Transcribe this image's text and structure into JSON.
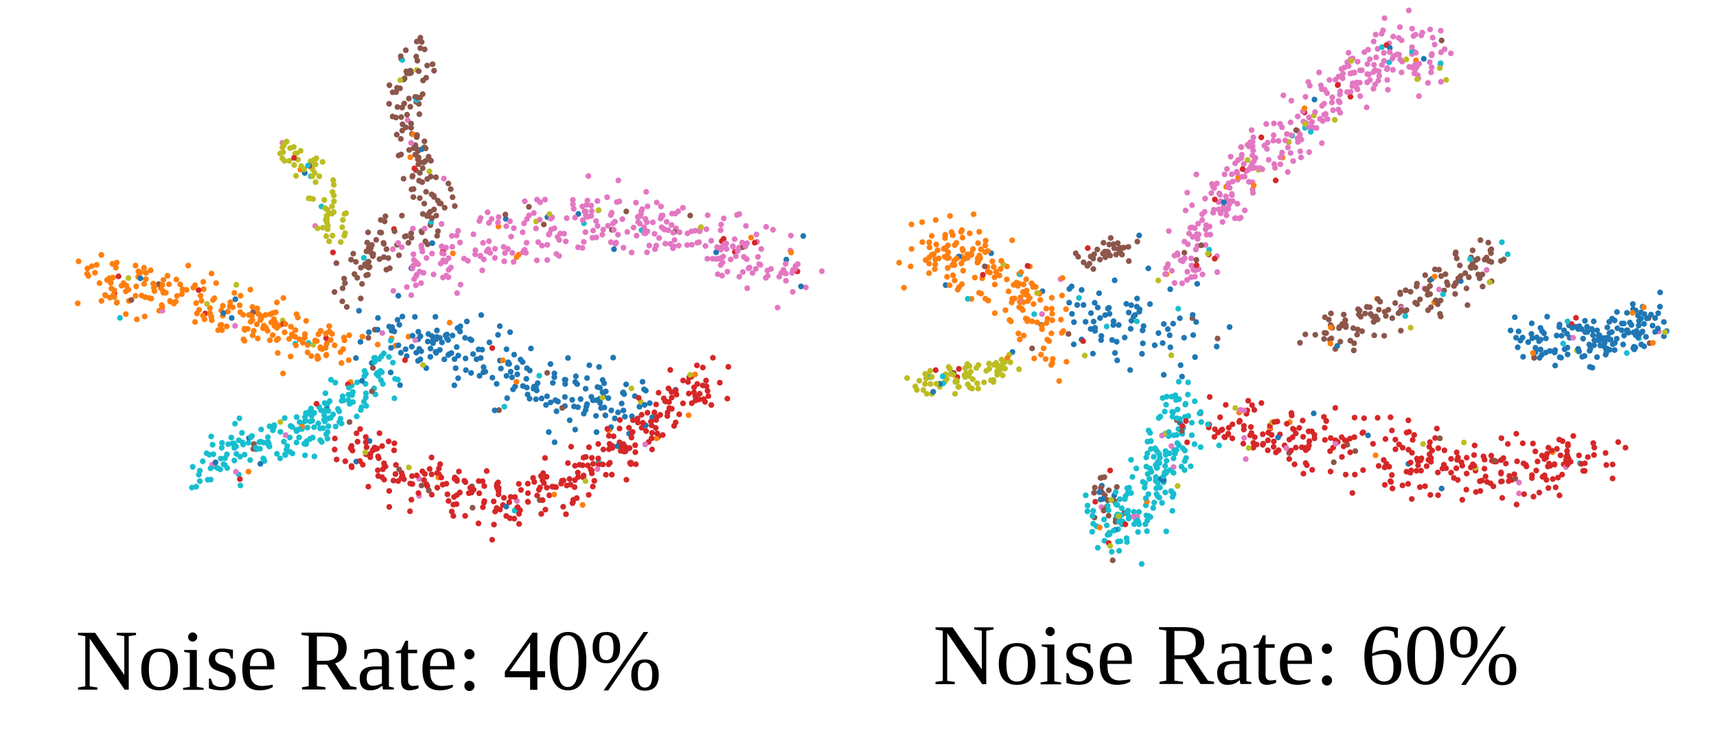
{
  "chart_data": [
    {
      "type": "scatter",
      "title": "Noise Rate: 40%",
      "xlim": [
        -2.3,
        2.3
      ],
      "ylim": [
        -1.25,
        1.55
      ],
      "grid": false,
      "axes_visible": false,
      "clusters": [
        {
          "class": 0,
          "color": "#1f77b4",
          "path": [
            [
              -0.35,
              -0.05
            ],
            [
              0.2,
              -0.15
            ],
            [
              0.75,
              -0.35
            ],
            [
              1.25,
              -0.45
            ]
          ],
          "spread": 0.09,
          "count": 230
        },
        {
          "class": 1,
          "color": "#ff7f0e",
          "path": [
            [
              -2.2,
              0.25
            ],
            [
              -1.7,
              0.2
            ],
            [
              -1.25,
              0.08
            ],
            [
              -0.85,
              -0.05
            ],
            [
              -0.55,
              -0.12
            ]
          ],
          "spread": 0.07,
          "count": 230
        },
        {
          "class": 2,
          "color": "#d62728",
          "path": [
            [
              -0.55,
              -0.6
            ],
            [
              -0.15,
              -0.8
            ],
            [
              0.35,
              -0.92
            ],
            [
              0.8,
              -0.85
            ],
            [
              1.25,
              -0.55
            ],
            [
              1.7,
              -0.25
            ]
          ],
          "spread": 0.07,
          "count": 330
        },
        {
          "class": 3,
          "color": "#8c564b",
          "path": [
            [
              -0.05,
              1.5
            ],
            [
              -0.2,
              1.2
            ],
            [
              -0.1,
              0.85
            ],
            [
              0.05,
              0.6
            ],
            [
              -0.35,
              0.45
            ],
            [
              -0.55,
              0.2
            ]
          ],
          "spread": 0.06,
          "count": 190
        },
        {
          "class": 4,
          "color": "#e377c2",
          "path": [
            [
              -0.25,
              0.3
            ],
            [
              0.3,
              0.45
            ],
            [
              0.9,
              0.58
            ],
            [
              1.5,
              0.5
            ],
            [
              2.0,
              0.35
            ],
            [
              2.25,
              0.25
            ]
          ],
          "spread": 0.08,
          "count": 340
        },
        {
          "class": 5,
          "color": "#17becf",
          "path": [
            [
              -1.45,
              -0.75
            ],
            [
              -1.0,
              -0.6
            ],
            [
              -0.6,
              -0.45
            ],
            [
              -0.3,
              -0.2
            ]
          ],
          "spread": 0.07,
          "count": 210
        },
        {
          "class": 6,
          "color": "#bcbd22",
          "path": [
            [
              -0.95,
              0.95
            ],
            [
              -0.8,
              0.85
            ],
            [
              -0.7,
              0.7
            ],
            [
              -0.6,
              0.45
            ]
          ],
          "spread": 0.05,
          "count": 75
        }
      ]
    },
    {
      "type": "scatter",
      "title": "Noise Rate: 60%",
      "xlim": [
        -2.3,
        2.3
      ],
      "ylim": [
        -1.25,
        1.55
      ],
      "grid": false,
      "axes_visible": false,
      "clusters": [
        {
          "class": 0,
          "color": "#1f77b4",
          "path": [
            [
              1.45,
              -0.05
            ],
            [
              1.8,
              -0.08
            ],
            [
              2.15,
              -0.02
            ],
            [
              2.3,
              0.02
            ]
          ],
          "spread": 0.06,
          "count": 170
        },
        {
          "class": 0,
          "color": "#1f77b4",
          "path": [
            [
              -1.35,
              0.1
            ],
            [
              -0.9,
              0.0
            ],
            [
              -0.55,
              -0.05
            ]
          ],
          "spread": 0.12,
          "count": 90
        },
        {
          "class": 1,
          "color": "#ff7f0e",
          "path": [
            [
              -2.25,
              0.45
            ],
            [
              -1.9,
              0.35
            ],
            [
              -1.6,
              0.15
            ],
            [
              -1.45,
              -0.1
            ]
          ],
          "spread": 0.09,
          "count": 190
        },
        {
          "class": 2,
          "color": "#d62728",
          "path": [
            [
              -0.5,
              -0.5
            ],
            [
              0.1,
              -0.62
            ],
            [
              0.8,
              -0.72
            ],
            [
              1.4,
              -0.78
            ],
            [
              1.95,
              -0.7
            ]
          ],
          "spread": 0.08,
          "count": 320
        },
        {
          "class": 3,
          "color": "#8c564b",
          "path": [
            [
              0.2,
              -0.05
            ],
            [
              0.55,
              0.05
            ],
            [
              0.95,
              0.2
            ],
            [
              1.3,
              0.38
            ]
          ],
          "spread": 0.06,
          "count": 150
        },
        {
          "class": 3,
          "color": "#8c564b",
          "path": [
            [
              -1.3,
              0.35
            ],
            [
              -1.1,
              0.4
            ],
            [
              -0.95,
              0.45
            ]
          ],
          "spread": 0.04,
          "count": 35
        },
        {
          "class": 3,
          "color": "#8c564b",
          "path": [
            [
              -1.15,
              -0.8
            ],
            [
              -1.1,
              -1.05
            ]
          ],
          "spread": 0.04,
          "count": 25
        },
        {
          "class": 4,
          "color": "#e377c2",
          "path": [
            [
              -0.65,
              0.3
            ],
            [
              -0.45,
              0.6
            ],
            [
              -0.2,
              0.9
            ],
            [
              0.15,
              1.15
            ],
            [
              0.45,
              1.35
            ],
            [
              0.75,
              1.5
            ],
            [
              0.9,
              1.35
            ]
          ],
          "spread": 0.08,
          "count": 360
        },
        {
          "class": 5,
          "color": "#17becf",
          "path": [
            [
              -0.65,
              -0.4
            ],
            [
              -0.7,
              -0.7
            ],
            [
              -0.95,
              -1.0
            ],
            [
              -1.15,
              -1.15
            ]
          ],
          "spread": 0.08,
          "count": 210
        },
        {
          "class": 6,
          "color": "#bcbd22",
          "path": [
            [
              -2.25,
              -0.3
            ],
            [
              -1.95,
              -0.28
            ],
            [
              -1.7,
              -0.2
            ]
          ],
          "spread": 0.04,
          "count": 80
        }
      ]
    }
  ]
}
